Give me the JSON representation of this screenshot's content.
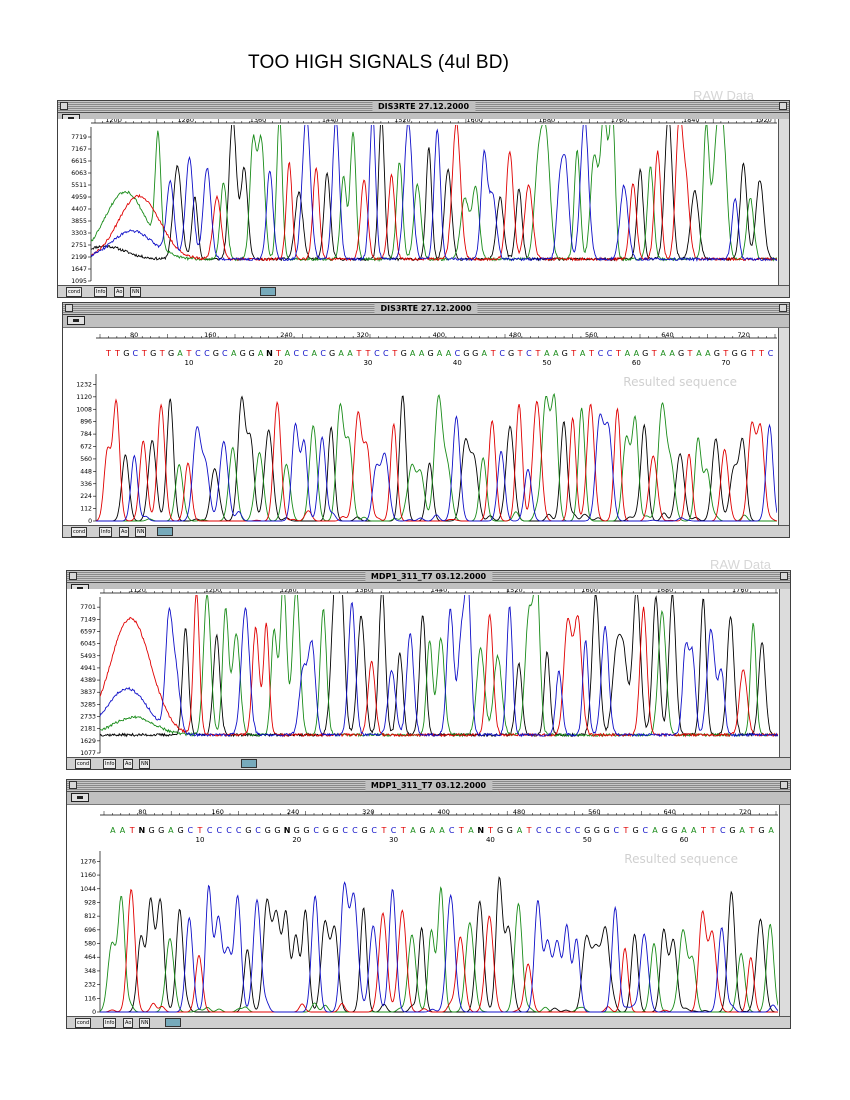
{
  "page_title": "TOO HIGH SIGNALS (4ul BD)",
  "labels": {
    "raw": "RAW Data",
    "resulted": "Resulted sequence"
  },
  "bottom_buttons": [
    "cond",
    "Info",
    "Ao",
    "NN"
  ],
  "colors": {
    "black": "#000000",
    "green": "#1a8c1a",
    "red": "#e00000",
    "blue": "#1010c8"
  },
  "chart_data": [
    {
      "type": "line",
      "kind": "raw",
      "window_title": "DIS3RTE 27.12.2000",
      "x_ticks": [
        "1200",
        "1280",
        "1360",
        "1440",
        "1520",
        "1600",
        "1680",
        "1760",
        "1840",
        "1920"
      ],
      "xlim": [
        1175,
        1935
      ],
      "y_ticks": [
        "7719",
        "7167",
        "6615",
        "6063",
        "5511",
        "4959",
        "4407",
        "3855",
        "3303",
        "2751",
        "2199",
        "1647",
        "1095"
      ],
      "ylim": [
        1095,
        7995
      ],
      "seed": 11,
      "peak_count": 66,
      "max_h": 7995,
      "baseline": 2100,
      "lead": [
        {
          "c": "black",
          "peak": 2700,
          "pos": 0.02
        },
        {
          "c": "green",
          "peak": 5200,
          "pos": 0.05
        },
        {
          "c": "red",
          "peak": 5000,
          "pos": 0.07
        },
        {
          "c": "blue",
          "peak": 3400,
          "pos": 0.06
        }
      ],
      "sequence": "",
      "seq_numbers": []
    },
    {
      "type": "line",
      "kind": "processed",
      "window_title": "DIS3RTE 27.12.2000",
      "x_ticks": [
        "80",
        "160",
        "240",
        "320",
        "400",
        "480",
        "560",
        "640",
        "720"
      ],
      "xlim": [
        40,
        755
      ],
      "y_ticks": [
        "1232",
        "1120",
        "1008",
        "896",
        "784",
        "672",
        "560",
        "448",
        "336",
        "224",
        "112",
        "0"
      ],
      "ylim": [
        0,
        1290
      ],
      "seed": 23,
      "peak_count": 66,
      "max_h": 1200,
      "baseline": 0,
      "lead": [],
      "sequence": "TTGCTGTGATCCGCAGGANTACCACGAATTCCTGAAGAACGGATCGTCTAAGTATCCTAAGTAAGTAAGTGGTTC",
      "seq_numbers": [
        "10",
        "20",
        "30",
        "40",
        "50",
        "60",
        "70"
      ]
    },
    {
      "type": "line",
      "kind": "raw",
      "window_title": "MDP1_311_T7 03.12.2000",
      "x_ticks": [
        "1120",
        "1200",
        "1280",
        "1360",
        "1440",
        "1520",
        "1600",
        "1680",
        "1760"
      ],
      "xlim": [
        1080,
        1800
      ],
      "y_ticks": [
        "7701",
        "7149",
        "6597",
        "6045",
        "5493",
        "4941",
        "4389",
        "3837",
        "3285",
        "2733",
        "2181",
        "1629",
        "1077"
      ],
      "ylim": [
        1077,
        7980
      ],
      "seed": 37,
      "peak_count": 62,
      "max_h": 7980,
      "baseline": 1900,
      "lead": [
        {
          "c": "red",
          "peak": 7200,
          "pos": 0.045
        },
        {
          "c": "blue",
          "peak": 4000,
          "pos": 0.04
        },
        {
          "c": "green",
          "peak": 2700,
          "pos": 0.05
        }
      ],
      "sequence": "",
      "seq_numbers": []
    },
    {
      "type": "line",
      "kind": "processed",
      "window_title": "MDP1_311_T7 03.12.2000",
      "x_ticks": [
        "80",
        "160",
        "240",
        "320",
        "400",
        "480",
        "560",
        "640",
        "720"
      ],
      "xlim": [
        35,
        755
      ],
      "y_ticks": [
        "1276",
        "1160",
        "1044",
        "928",
        "812",
        "696",
        "580",
        "464",
        "348",
        "232",
        "116",
        "0"
      ],
      "ylim": [
        0,
        1330
      ],
      "seed": 51,
      "peak_count": 66,
      "max_h": 1140,
      "baseline": 0,
      "lead": [],
      "sequence": "AATNGGAGCTCCCCGCGGNGGCGGCCGCTCTAGAACTANTGGATCCCCCGGGCTGCAGGAATTCGATGA",
      "seq_numbers": [
        "10",
        "20",
        "30",
        "40",
        "50",
        "60"
      ]
    }
  ]
}
